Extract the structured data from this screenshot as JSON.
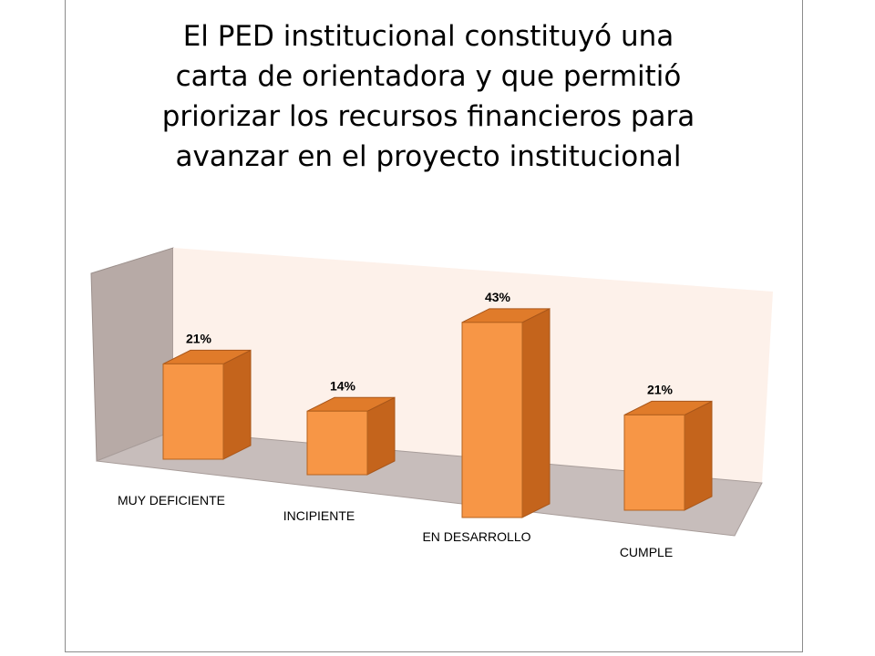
{
  "chart_data": {
    "type": "bar",
    "title": "El PED institucional constituyó una carta de orientadora y que permitió priorizar los recursos financieros para avanzar en el proyecto institucional",
    "title_lines": [
      "El PED institucional constituyó una",
      "carta de orientadora y que permitió",
      "priorizar los recursos financieros para",
      "avanzar en el proyecto institucional"
    ],
    "categories": [
      "MUY DEFICIENTE",
      "INCIPIENTE",
      "EN DESARROLLO",
      "CUMPLE"
    ],
    "values": [
      21,
      14,
      43,
      21
    ],
    "data_labels": [
      "21%",
      "14%",
      "43%",
      "21%"
    ],
    "xlabel": "",
    "ylabel": "",
    "ylim": [
      0,
      50
    ],
    "grid": false,
    "legend": "none",
    "style": "3d-column"
  },
  "colors": {
    "bar_front": "#f79646",
    "bar_top": "#e07b2a",
    "bar_side": "#c4641c",
    "back_wall": "#fdf1ea",
    "side_wall": "#b7aaa6",
    "floor": "#c7bdbb"
  }
}
